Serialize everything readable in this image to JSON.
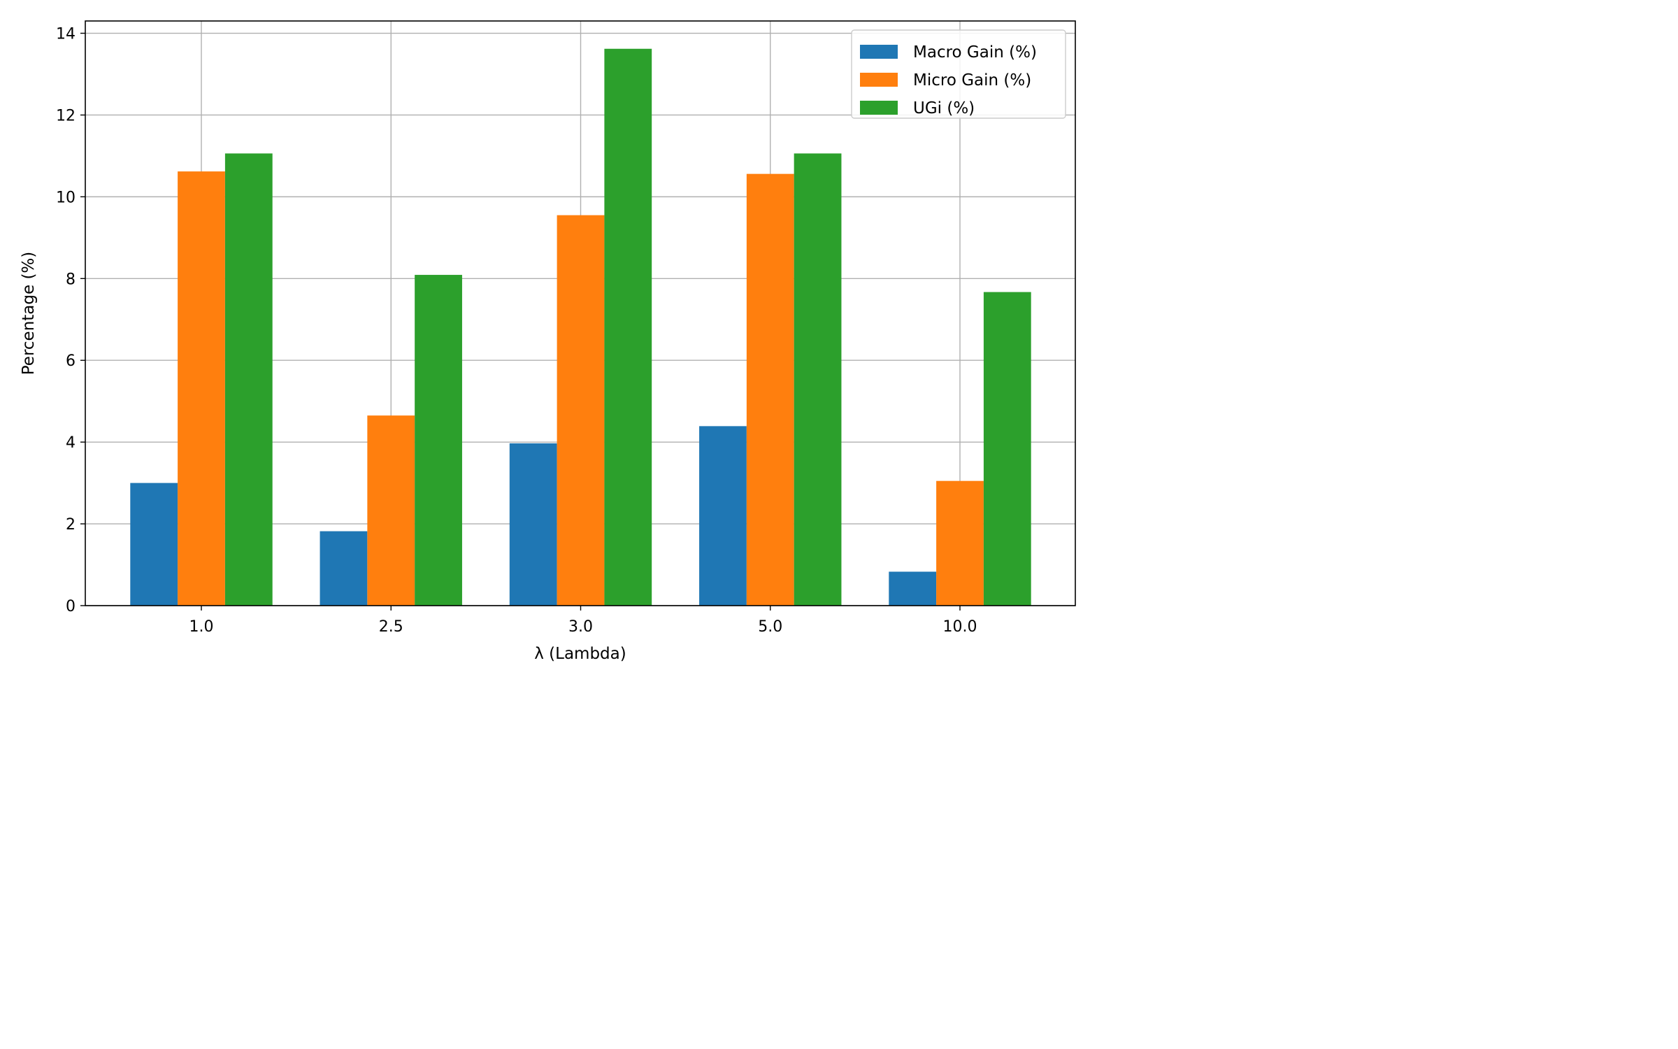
{
  "chart_data": {
    "type": "bar",
    "title": "",
    "xlabel": "λ (Lambda)",
    "ylabel": "Percentage (%)",
    "categories": [
      "1.0",
      "2.5",
      "3.0",
      "5.0",
      "10.0"
    ],
    "series": [
      {
        "name": "Macro Gain (%)",
        "color": "#1f77b4",
        "values": [
          3.0,
          1.82,
          3.97,
          4.39,
          0.83
        ]
      },
      {
        "name": "Micro Gain (%)",
        "color": "#ff7f0e",
        "values": [
          10.62,
          4.65,
          9.55,
          10.56,
          3.05
        ]
      },
      {
        "name": "UGi (%)",
        "color": "#2ca02c",
        "values": [
          11.06,
          8.09,
          13.62,
          11.06,
          7.67
        ]
      }
    ],
    "ylim": [
      0,
      14.3
    ],
    "yticks": [
      "0",
      "2",
      "4",
      "6",
      "8",
      "10",
      "12",
      "14"
    ],
    "grid": true,
    "legend_position": "top-right"
  }
}
